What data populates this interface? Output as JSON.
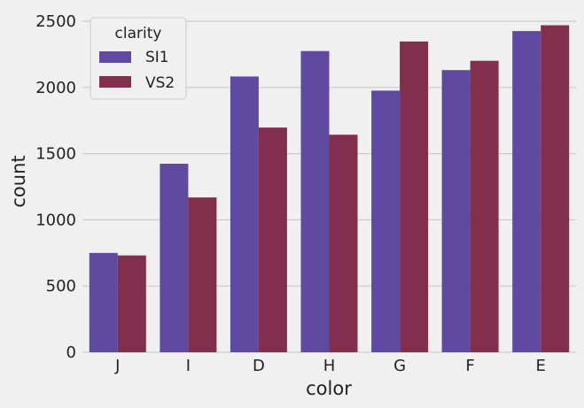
{
  "chart_data": {
    "type": "bar",
    "xlabel": "color",
    "ylabel": "count",
    "categories": [
      "J",
      "I",
      "D",
      "H",
      "G",
      "F",
      "E"
    ],
    "series": [
      {
        "name": "SI1",
        "values": [
          750,
          1424,
          2083,
          2275,
          1976,
          2131,
          2426
        ]
      },
      {
        "name": "VS2",
        "values": [
          731,
          1169,
          1697,
          1643,
          2347,
          2201,
          2470
        ]
      }
    ],
    "ylim": [
      0,
      2550
    ],
    "yticks": [
      0,
      500,
      1000,
      1500,
      2000,
      2500
    ],
    "grid": true,
    "legend": {
      "title": "clarity",
      "placement": "top-left"
    },
    "colors": {
      "SI1": "#6049a0",
      "VS2": "#822f4e",
      "background": "#f0f0f0",
      "grid": "#cbcbcb"
    }
  }
}
